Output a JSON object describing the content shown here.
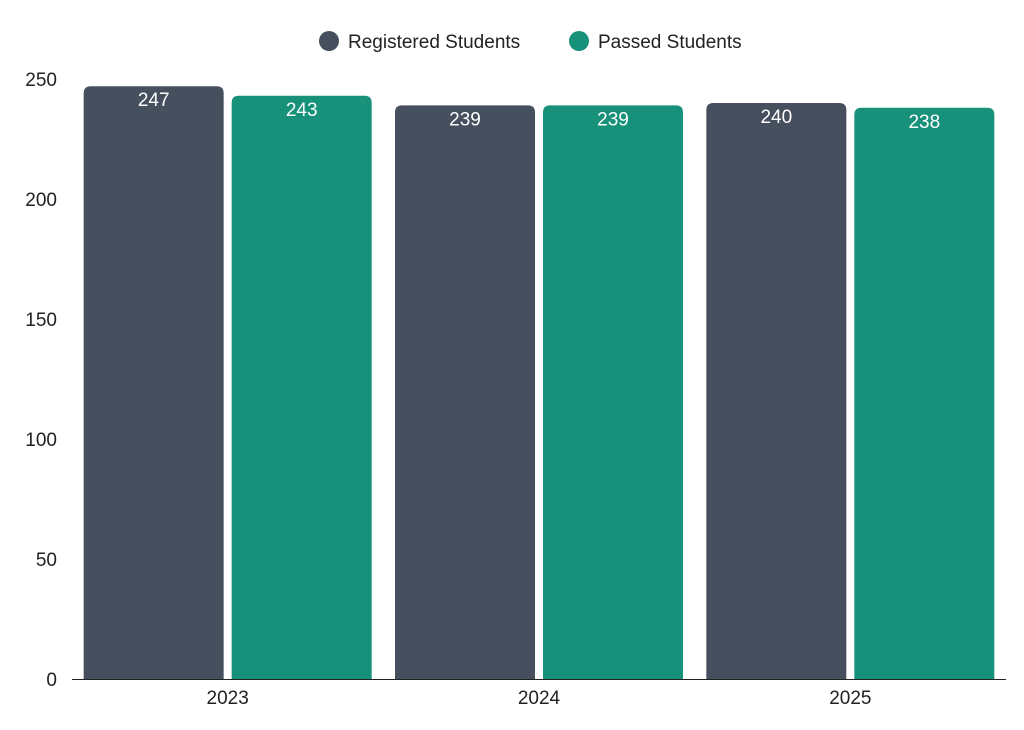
{
  "chart_data": {
    "type": "bar",
    "title": "",
    "xlabel": "",
    "ylabel": "",
    "categories": [
      "2023",
      "2024",
      "2025"
    ],
    "series": [
      {
        "name": "Registered Students",
        "color": "#464f5e",
        "values": [
          247,
          239,
          240
        ]
      },
      {
        "name": "Passed Students",
        "color": "#18917a",
        "values": [
          243,
          239,
          238
        ]
      }
    ],
    "ylim": [
      0,
      250
    ],
    "yticks": [
      "0",
      "50",
      "100",
      "150",
      "200",
      "250"
    ],
    "legend_position": "top-center",
    "grid": false,
    "data_labels": true
  }
}
